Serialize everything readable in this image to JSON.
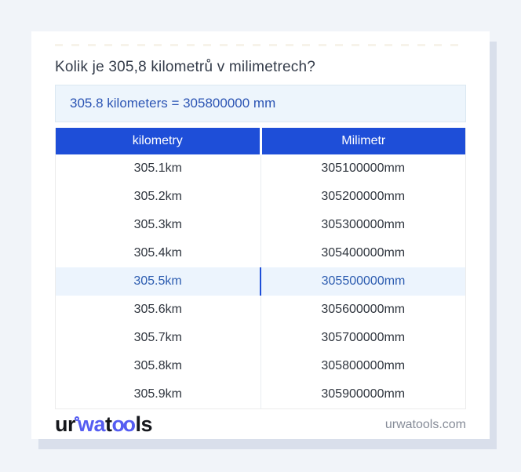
{
  "colors": {
    "page_bg": "#f1f4f9",
    "card_bg": "#ffffff",
    "card_shadow": "#d9dfeb",
    "accent_blue": "#1e4ed8",
    "answer_bg": "#edf5fc",
    "answer_border": "#dbe8f2",
    "answer_text": "#2c55b4",
    "highlight_bg": "#ecf4fd",
    "highlight_text": "#2c5cb0",
    "title_text": "#333b49",
    "row_text": "#2f353e",
    "muted_text": "#868c98",
    "logo_blue": "#555df2"
  },
  "title": "Kolik je 305,8 kilometrů v milimetrech?",
  "answer": {
    "text": "305.8 kilometers = 305800000 mm"
  },
  "table": {
    "headers": [
      "kilometry",
      "Milimetr"
    ],
    "rows": [
      [
        "305.1km",
        "305100000mm"
      ],
      [
        "305.2km",
        "305200000mm"
      ],
      [
        "305.3km",
        "305300000mm"
      ],
      [
        "305.4km",
        "305400000mm"
      ],
      [
        "305.5km",
        "305500000mm"
      ],
      [
        "305.6km",
        "305600000mm"
      ],
      [
        "305.7km",
        "305700000mm"
      ],
      [
        "305.8km",
        "305800000mm"
      ],
      [
        "305.9km",
        "305900000mm"
      ]
    ],
    "highlighted_row_index": 4
  },
  "footer": {
    "logo": {
      "segments": [
        {
          "text": "ur"
        },
        {
          "text": "wa"
        },
        {
          "text": "t"
        },
        {
          "text": "oo"
        },
        {
          "text": "ls"
        }
      ]
    },
    "site_text": "urwatools.com"
  }
}
